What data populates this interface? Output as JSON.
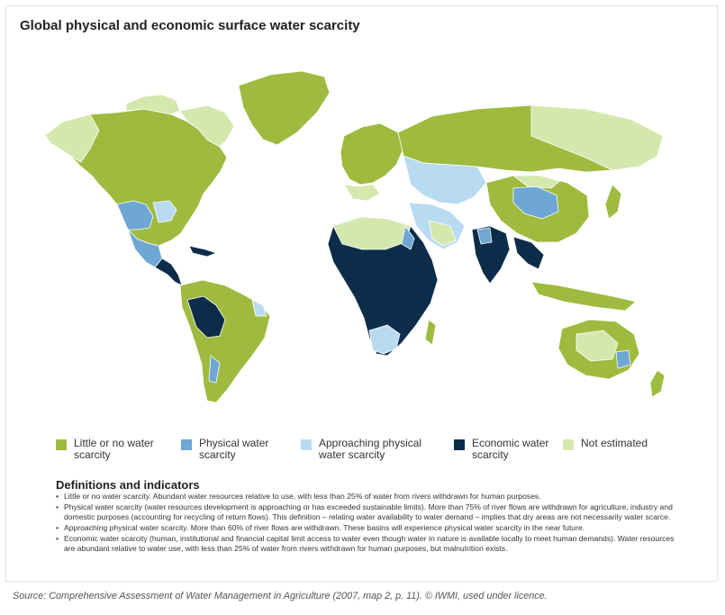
{
  "title": "Global physical and economic surface water scarcity",
  "colors": {
    "little": "#9fba3e",
    "physical": "#6ea6d4",
    "approaching": "#b9dbf2",
    "economic": "#0d2c4a",
    "not_estimated": "#d4e8ae",
    "ocean": "#ffffff",
    "border": "#ffffff"
  },
  "legend": {
    "little": {
      "label": "Little or no water scarcity"
    },
    "physical": {
      "label": "Physical water scarcity"
    },
    "approaching": {
      "label": "Approaching physical water scarcity"
    },
    "economic": {
      "label": "Economic water scarcity"
    },
    "not_estimated": {
      "label": "Not estimated"
    }
  },
  "definitions": {
    "heading": "Definitions and indicators",
    "items": [
      "Little or no water scarcity. Abundant water resources relative to use, with less than 25% of water from rivers withdrawn for human purposes.",
      "Physical water scarcity (water resources development is approaching or has exceeded sustainable limits). More than 75% of river flows are withdrawn for agriculture, industry and domestic purposes (accounting for recycling of return flows). This definition – relating water availability to water demand – implies that dry areas are not necessarily water scarce.",
      "Approaching physical water scarcity. More than 60% of river flows are withdrawn. These basins will experience physical water scarcity in the near future.",
      "Economic water scarcity (human, institutional and financial capital limit access to water even though water in nature is available locally to meet human demands). Water resources are abundant relative to water use, with less than 25% of water from rivers withdrawn for human purposes, but malnutrition exists."
    ]
  },
  "source": "Source: Comprehensive Assessment of Water Management in Agriculture (2007, map 2, p. 11). © IWMI, used under licence."
}
